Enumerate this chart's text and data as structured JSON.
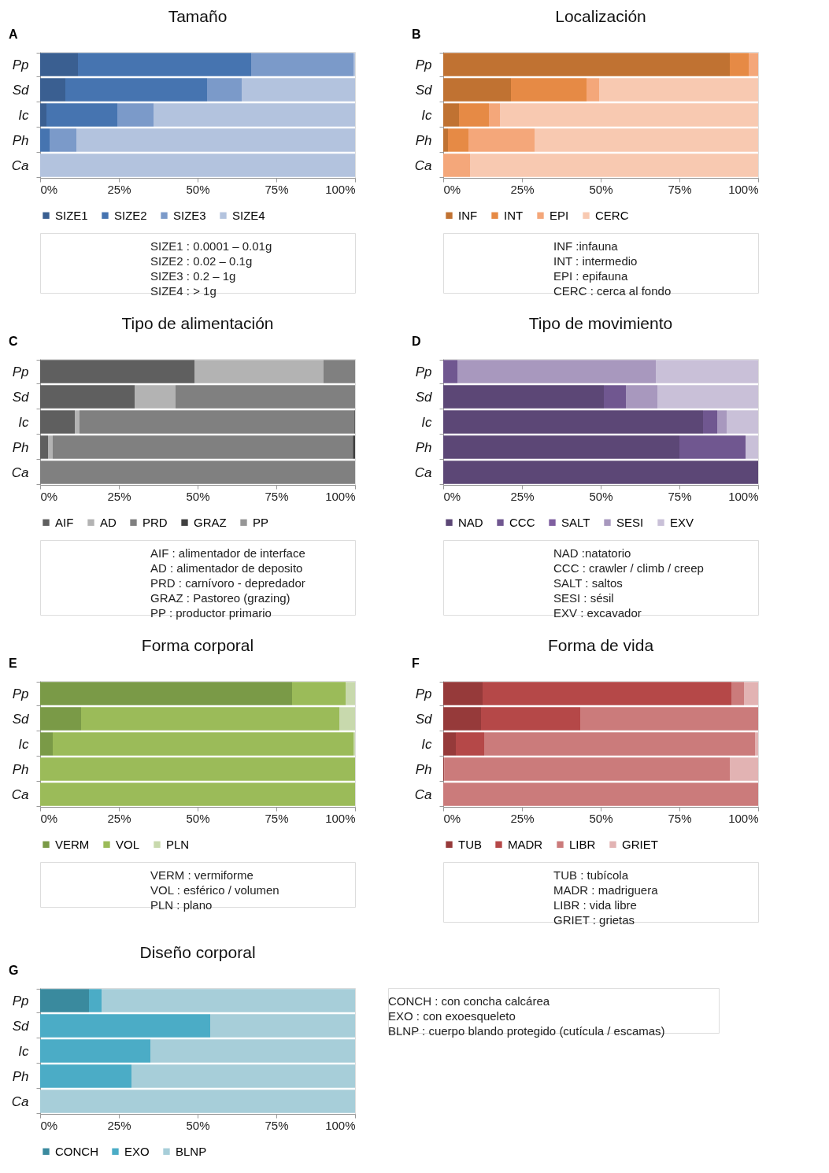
{
  "chart_data": [
    {
      "type": "bar",
      "orientation": "horizontal",
      "stacked": true,
      "title": "Tamaño",
      "categories": [
        "Pp",
        "Sd",
        "Ic",
        "Ph",
        "Ca"
      ],
      "series": [
        {
          "name": "SIZE1",
          "color": "#3a5f91",
          "values": [
            12,
            8,
            2,
            0,
            0
          ]
        },
        {
          "name": "SIZE2",
          "color": "#4674b0",
          "values": [
            55,
            45,
            22.5,
            3,
            0
          ]
        },
        {
          "name": "SIZE3",
          "color": "#7b9ac9",
          "values": [
            32.5,
            11,
            11.5,
            8.5,
            0
          ]
        },
        {
          "name": "SIZE4",
          "color": "#b3c3de",
          "values": [
            0.5,
            36,
            64,
            88.5,
            100
          ]
        }
      ],
      "xlim": [
        0,
        100
      ],
      "xticks": [
        {
          "value": 0,
          "label": "0%"
        },
        {
          "value": 25,
          "label": "25%"
        },
        {
          "value": 50,
          "label": "50%"
        },
        {
          "value": 75,
          "label": "75%"
        },
        {
          "value": 100,
          "label": "100%"
        }
      ],
      "grid": false,
      "legend": "bottom",
      "annotations": [
        "A",
        "SIZE1 : 0.0001 – 0.01g",
        "SIZE2 : 0.02 – 0.1g",
        "SIZE3 : 0.2 – 1g",
        "SIZE4 : > 1g"
      ]
    },
    {
      "type": "bar",
      "orientation": "horizontal",
      "stacked": true,
      "title": "Localización",
      "categories": [
        "Pp",
        "Sd",
        "Ic",
        "Ph",
        "Ca"
      ],
      "series": [
        {
          "name": "INF",
          "color": "#c07232",
          "values": [
            91,
            21.5,
            5,
            1.5,
            0
          ]
        },
        {
          "name": "INT",
          "color": "#e68a45",
          "values": [
            6,
            24,
            9.5,
            6.5,
            0
          ]
        },
        {
          "name": "EPI",
          "color": "#f4a77a",
          "values": [
            3,
            4,
            3.5,
            21,
            8.5
          ]
        },
        {
          "name": "CERC",
          "color": "#f8c9b1",
          "values": [
            0,
            50.5,
            82,
            71,
            91.5
          ]
        }
      ],
      "xlim": [
        0,
        100
      ],
      "xticks": [
        {
          "value": 0,
          "label": "0%"
        },
        {
          "value": 25,
          "label": "25%"
        },
        {
          "value": 50,
          "label": "50%"
        },
        {
          "value": 75,
          "label": "75%"
        },
        {
          "value": 100,
          "label": "100%"
        }
      ],
      "grid": false,
      "legend": "bottom",
      "annotations": [
        "B",
        "INF :infauna",
        "INT : intermedio",
        "EPI : epifauna",
        "CERC : cerca al fondo"
      ]
    },
    {
      "type": "bar",
      "orientation": "horizontal",
      "stacked": true,
      "title": "Tipo de alimentación",
      "categories": [
        "Pp",
        "Sd",
        "Ic",
        "Ph",
        "Ca"
      ],
      "series": [
        {
          "name": "AIF",
          "color": "#5f5f5f",
          "values": [
            49,
            30,
            11,
            2.5,
            0
          ]
        },
        {
          "name": "AD",
          "color": "#b3b3b3",
          "values": [
            41,
            13,
            1.5,
            1.5,
            0
          ]
        },
        {
          "name": "PRD",
          "color": "#808080",
          "values": [
            10,
            57,
            87.3,
            95.3,
            100
          ]
        },
        {
          "name": "GRAZ",
          "color": "#404040",
          "values": [
            0,
            0,
            0.2,
            0.7,
            0
          ]
        },
        {
          "name": "PP",
          "color": "#969696",
          "values": [
            0,
            0,
            0,
            0,
            0
          ]
        }
      ],
      "xlim": [
        0,
        100
      ],
      "xticks": [
        {
          "value": 0,
          "label": "0%"
        },
        {
          "value": 25,
          "label": "25%"
        },
        {
          "value": 50,
          "label": "50%"
        },
        {
          "value": 75,
          "label": "75%"
        },
        {
          "value": 100,
          "label": "100%"
        }
      ],
      "grid": false,
      "legend": "bottom",
      "annotations": [
        "C",
        "AIF :  alimentador de interface",
        "AD : alimentador de deposito",
        "PRD : carnívoro - depredador",
        "GRAZ : Pastoreo (grazing)",
        "PP : productor primario"
      ]
    },
    {
      "type": "bar",
      "orientation": "horizontal",
      "stacked": true,
      "title": "Tipo de movimiento",
      "categories": [
        "Pp",
        "Sd",
        "Ic",
        "Ph",
        "Ca"
      ],
      "series": [
        {
          "name": "NAD",
          "color": "#5c4776",
          "values": [
            0,
            51,
            82.5,
            75,
            100
          ]
        },
        {
          "name": "CCC",
          "color": "#705790",
          "values": [
            4.5,
            7,
            4.5,
            21,
            0
          ]
        },
        {
          "name": "SALT",
          "color": "#7f5fa0",
          "values": [
            0,
            0,
            0,
            0,
            0
          ]
        },
        {
          "name": "SESI",
          "color": "#a898be",
          "values": [
            63,
            10,
            3,
            0,
            0
          ]
        },
        {
          "name": "EXV",
          "color": "#c9c0d8",
          "values": [
            32.5,
            32,
            10,
            4,
            0
          ]
        }
      ],
      "xlim": [
        0,
        100
      ],
      "xticks": [
        {
          "value": 0,
          "label": "0%"
        },
        {
          "value": 25,
          "label": "25%"
        },
        {
          "value": 50,
          "label": "50%"
        },
        {
          "value": 75,
          "label": "75%"
        },
        {
          "value": 100,
          "label": "100%"
        }
      ],
      "grid": false,
      "legend": "bottom",
      "annotations": [
        "D",
        "NAD :natatorio",
        "CCC : crawler / climb / creep",
        "SALT : saltos",
        "SESI : sésil",
        "EXV : excavador"
      ]
    },
    {
      "type": "bar",
      "orientation": "horizontal",
      "stacked": true,
      "title": "Forma corporal",
      "categories": [
        "Pp",
        "Sd",
        "Ic",
        "Ph",
        "Ca"
      ],
      "series": [
        {
          "name": "VERM",
          "color": "#7a9a47",
          "values": [
            80,
            13,
            4,
            0,
            0
          ]
        },
        {
          "name": "VOL",
          "color": "#9bbb59",
          "values": [
            17,
            82,
            95.5,
            100,
            100
          ]
        },
        {
          "name": "PLN",
          "color": "#c8d9ad",
          "values": [
            3,
            5,
            0.5,
            0,
            0
          ]
        }
      ],
      "xlim": [
        0,
        100
      ],
      "xticks": [
        {
          "value": 0,
          "label": "0%"
        },
        {
          "value": 25,
          "label": "25%"
        },
        {
          "value": 50,
          "label": "50%"
        },
        {
          "value": 75,
          "label": "75%"
        },
        {
          "value": 100,
          "label": "100%"
        }
      ],
      "grid": false,
      "legend": "bottom",
      "annotations": [
        "E",
        "VERM : vermiforme",
        "VOL :  esférico / volumen",
        "PLN :  plano"
      ]
    },
    {
      "type": "bar",
      "orientation": "horizontal",
      "stacked": true,
      "title": "Forma de vida",
      "categories": [
        "Pp",
        "Sd",
        "Ic",
        "Ph",
        "Ca"
      ],
      "series": [
        {
          "name": "TUB",
          "color": "#963a3a",
          "values": [
            12.5,
            12,
            4,
            0.3,
            0
          ]
        },
        {
          "name": "MADR",
          "color": "#b54848",
          "values": [
            79,
            31.5,
            9,
            0,
            0
          ]
        },
        {
          "name": "LIBR",
          "color": "#cb7b7b",
          "values": [
            4,
            56.5,
            86,
            90.7,
            100
          ]
        },
        {
          "name": "GRIET",
          "color": "#e2b3b3",
          "values": [
            4.5,
            0,
            1,
            9,
            0
          ]
        }
      ],
      "xlim": [
        0,
        100
      ],
      "xticks": [
        {
          "value": 0,
          "label": "0%"
        },
        {
          "value": 25,
          "label": "25%"
        },
        {
          "value": 50,
          "label": "50%"
        },
        {
          "value": 75,
          "label": "75%"
        },
        {
          "value": 100,
          "label": "100%"
        }
      ],
      "grid": false,
      "legend": "bottom",
      "annotations": [
        "F",
        "TUB : tubícola",
        "MADR : madriguera",
        "LIBR : vida libre",
        "GRIET : grietas"
      ]
    },
    {
      "type": "bar",
      "orientation": "horizontal",
      "stacked": true,
      "title": "Diseño corporal",
      "categories": [
        "Pp",
        "Sd",
        "Ic",
        "Ph",
        "Ca"
      ],
      "series": [
        {
          "name": "CONCH",
          "color": "#3a8a9e",
          "values": [
            15.5,
            0,
            0,
            0,
            0
          ]
        },
        {
          "name": "EXO",
          "color": "#4bacc6",
          "values": [
            4,
            54,
            35,
            29,
            0
          ]
        },
        {
          "name": "BLNP",
          "color": "#a7ced9",
          "values": [
            80.5,
            46,
            65,
            71,
            100
          ]
        }
      ],
      "xlim": [
        0,
        100
      ],
      "xticks": [
        {
          "value": 0,
          "label": "0%"
        },
        {
          "value": 25,
          "label": "25%"
        },
        {
          "value": 50,
          "label": "50%"
        },
        {
          "value": 75,
          "label": "75%"
        },
        {
          "value": 100,
          "label": "100%"
        }
      ],
      "grid": false,
      "legend": "bottom",
      "annotations": [
        "G",
        "CONCH :  con concha calcárea",
        "EXO :  con exoesqueleto",
        "BLNP : cuerpo blando protegido (cutícula / escamas)"
      ]
    }
  ]
}
